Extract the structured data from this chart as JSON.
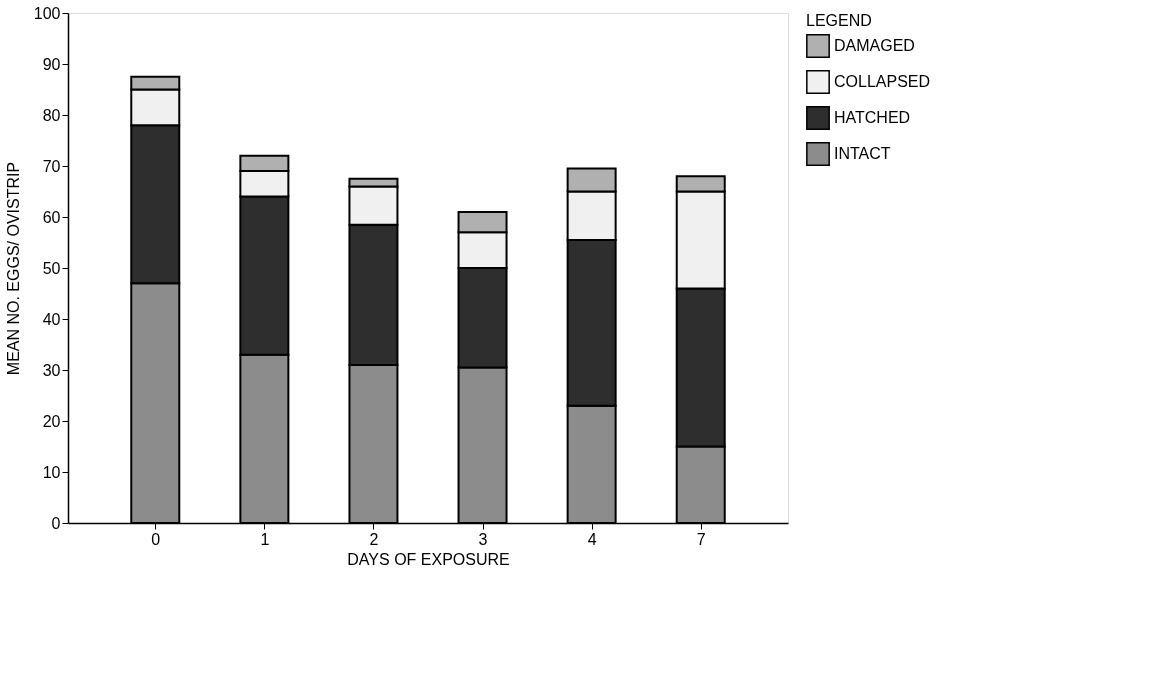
{
  "chart_data": {
    "type": "bar",
    "stacked": true,
    "xlabel": "DAYS OF EXPOSURE",
    "ylabel": "MEAN NO. EGGS/ OVISTRIP",
    "legend_title": "LEGEND",
    "legend": "top right",
    "grid": false,
    "categories": [
      "0",
      "1",
      "2",
      "3",
      "4",
      "7"
    ],
    "ylim": [
      0,
      100
    ],
    "yticks": [
      0,
      10,
      20,
      30,
      40,
      50,
      60,
      70,
      80,
      90,
      100
    ],
    "series": [
      {
        "name": "INTACT",
        "color": "#8c8c8c",
        "values": [
          47,
          33,
          31,
          30.5,
          23,
          15
        ]
      },
      {
        "name": "HATCHED",
        "color": "#2e2e2e",
        "values": [
          31,
          31,
          27.5,
          19.5,
          32.5,
          31
        ]
      },
      {
        "name": "COLLAPSED",
        "color": "#f0f0f0",
        "values": [
          7,
          5,
          7.5,
          7,
          9.5,
          19
        ]
      },
      {
        "name": "DAMAGED",
        "color": "#b0b0b0",
        "values": [
          2.5,
          3,
          1.5,
          4,
          4.5,
          3
        ]
      }
    ]
  }
}
